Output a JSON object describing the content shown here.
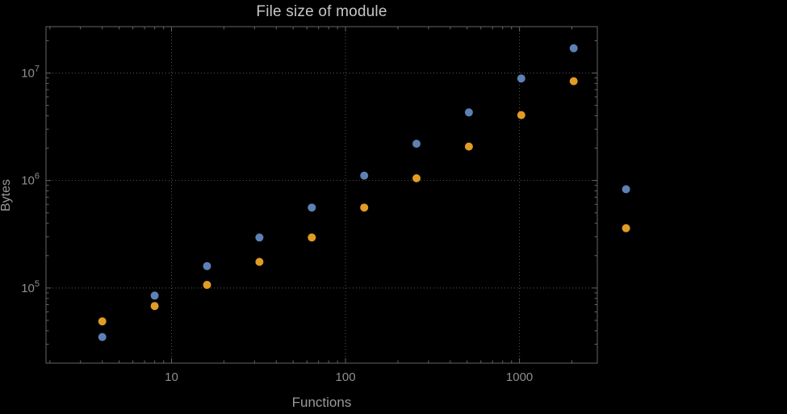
{
  "chart_data": {
    "type": "scatter",
    "title": "File size of module",
    "xlabel": "Functions",
    "ylabel": "Bytes",
    "x_scale": "log",
    "y_scale": "log",
    "xlim": [
      1.9,
      2800
    ],
    "ylim": [
      20000,
      27000000
    ],
    "grid": "major-dotted",
    "legend": "none",
    "x_ticks": {
      "major": [
        10,
        100,
        1000
      ],
      "labels": [
        "10",
        "100",
        "1000"
      ]
    },
    "y_ticks": {
      "major": [
        100000,
        1000000,
        10000000
      ],
      "labels": [
        {
          "base": "10",
          "exp": "5"
        },
        {
          "base": "10",
          "exp": "6"
        },
        {
          "base": "10",
          "exp": "7"
        }
      ]
    },
    "x": [
      4,
      8,
      16,
      32,
      64,
      128,
      256,
      512,
      1024,
      2048,
      4096
    ],
    "series": [
      {
        "name": "blue-series",
        "color": "#5E81B5",
        "values": [
          35000,
          85000,
          160000,
          295000,
          560000,
          1110000,
          2200000,
          4300000,
          8900000,
          17000000,
          830000
        ]
      },
      {
        "name": "orange-series",
        "color": "#E19C24",
        "values": [
          49000,
          68000,
          107000,
          175000,
          295000,
          560000,
          1050000,
          2070000,
          4060000,
          8400000,
          360000
        ]
      }
    ]
  },
  "colors": {
    "background": "#000000",
    "frame": "#646464",
    "grid": "#565656",
    "tick_label": "#8f8f8f",
    "title": "#c6c6c6",
    "axis_label": "#999999"
  }
}
